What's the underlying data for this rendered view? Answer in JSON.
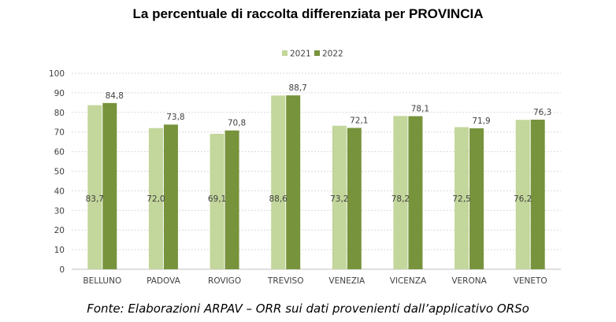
{
  "chart_data": {
    "type": "bar",
    "title": "La percentuale di raccolta differenziata per PROVINCIA",
    "categories": [
      "BELLUNO",
      "PADOVA",
      "ROVIGO",
      "TREVISO",
      "VENEZIA",
      "VICENZA",
      "VERONA",
      "VENETO"
    ],
    "series": [
      {
        "name": "2021",
        "values": [
          83.7,
          72.0,
          69.1,
          88.6,
          73.2,
          78.2,
          72.5,
          76.2
        ],
        "labels": [
          "83,7",
          "72,0",
          "69,1",
          "88,6",
          "73,2",
          "78,2",
          "72,5",
          "76,2"
        ],
        "color": "#c3d69b"
      },
      {
        "name": "2022",
        "values": [
          84.8,
          73.8,
          70.8,
          88.7,
          72.1,
          78.1,
          71.9,
          76.3
        ],
        "labels": [
          "84,8",
          "73,8",
          "70,8",
          "88,7",
          "72,1",
          "78,1",
          "71,9",
          "76,3"
        ],
        "color": "#77933c"
      }
    ],
    "ylim": [
      0,
      100
    ],
    "yticks": [
      "0",
      "10",
      "20",
      "30",
      "40",
      "50",
      "60",
      "70",
      "80",
      "90",
      "100"
    ],
    "grid": true,
    "legend_position": "top-center",
    "xlabel": "",
    "ylabel": ""
  },
  "source": "Fonte: Elaborazioni ARPAV – ORR sui dati provenienti dall’applicativo ORSo"
}
